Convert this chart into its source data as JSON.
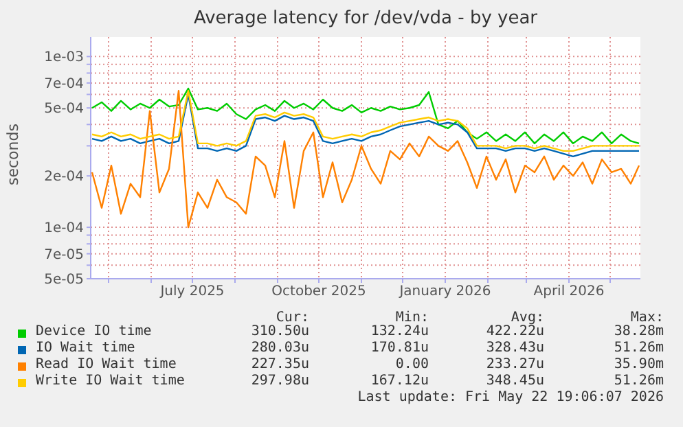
{
  "chart_data": {
    "type": "line",
    "title": "Average latency for /dev/vda - by year",
    "ylabel": "seconds",
    "log": "y",
    "grid": true,
    "legend": "bottom",
    "marker": "none",
    "line_style": "solid",
    "xlim": [
      "2025-04-18",
      "2026-05-23"
    ],
    "xticks": [
      {
        "value": "2025-05-01",
        "label": null
      },
      {
        "value": "2025-06-01",
        "label": null
      },
      {
        "value": "2025-07-01",
        "label": "July 2025"
      },
      {
        "value": "2025-08-01",
        "label": null
      },
      {
        "value": "2025-09-01",
        "label": null
      },
      {
        "value": "2025-10-01",
        "label": "October 2025"
      },
      {
        "value": "2025-11-01",
        "label": null
      },
      {
        "value": "2025-12-01",
        "label": null
      },
      {
        "value": "2026-01-01",
        "label": "January 2026"
      },
      {
        "value": "2026-02-01",
        "label": null
      },
      {
        "value": "2026-03-01",
        "label": null
      },
      {
        "value": "2026-04-01",
        "label": "April 2026"
      },
      {
        "value": "2026-05-01",
        "label": null
      }
    ],
    "ylim": [
      5e-05,
      0.0013
    ],
    "yticks": [
      {
        "value": 5e-05,
        "label": "5e-05"
      },
      {
        "value": 6e-05,
        "label": null
      },
      {
        "value": 7e-05,
        "label": "7e-05"
      },
      {
        "value": 8e-05,
        "label": null
      },
      {
        "value": 9e-05,
        "label": null
      },
      {
        "value": 0.0001,
        "label": "1e-04"
      },
      {
        "value": 0.0002,
        "label": "2e-04"
      },
      {
        "value": 0.0003,
        "label": null
      },
      {
        "value": 0.0004,
        "label": null
      },
      {
        "value": 0.0005,
        "label": "5e-04"
      },
      {
        "value": 0.0006,
        "label": null
      },
      {
        "value": 0.0007,
        "label": "7e-04"
      },
      {
        "value": 0.0008,
        "label": null
      },
      {
        "value": 0.0009,
        "label": null
      },
      {
        "value": 0.001,
        "label": "1e-03"
      }
    ],
    "x": [
      "2025-04-19",
      "2025-04-26",
      "2025-05-03",
      "2025-05-10",
      "2025-05-17",
      "2025-05-24",
      "2025-05-31",
      "2025-06-07",
      "2025-06-14",
      "2025-06-21",
      "2025-06-28",
      "2025-07-05",
      "2025-07-12",
      "2025-07-19",
      "2025-07-26",
      "2025-08-02",
      "2025-08-09",
      "2025-08-16",
      "2025-08-23",
      "2025-08-30",
      "2025-09-06",
      "2025-09-13",
      "2025-09-20",
      "2025-09-27",
      "2025-10-04",
      "2025-10-11",
      "2025-10-18",
      "2025-10-25",
      "2025-11-01",
      "2025-11-08",
      "2025-11-15",
      "2025-11-22",
      "2025-11-29",
      "2025-12-06",
      "2025-12-13",
      "2025-12-20",
      "2025-12-27",
      "2026-01-03",
      "2026-01-10",
      "2026-01-17",
      "2026-01-24",
      "2026-01-31",
      "2026-02-07",
      "2026-02-14",
      "2026-02-21",
      "2026-02-28",
      "2026-03-07",
      "2026-03-14",
      "2026-03-21",
      "2026-03-28",
      "2026-04-04",
      "2026-04-11",
      "2026-04-18",
      "2026-04-25",
      "2026-05-02",
      "2026-05-09",
      "2026-05-16",
      "2026-05-22"
    ],
    "series": [
      {
        "name": "Device IO time",
        "color": "#00cc00",
        "values": [
          0.0005,
          0.00054,
          0.00048,
          0.00055,
          0.00049,
          0.00053,
          0.0005,
          0.00056,
          0.00051,
          0.00052,
          0.00065,
          0.00049,
          0.0005,
          0.00048,
          0.00053,
          0.00046,
          0.00043,
          0.00049,
          0.00052,
          0.00048,
          0.00055,
          0.0005,
          0.00053,
          0.00049,
          0.00056,
          0.0005,
          0.00048,
          0.00052,
          0.00047,
          0.0005,
          0.00048,
          0.00051,
          0.00049,
          0.0005,
          0.00052,
          0.00062,
          0.0004,
          0.00038,
          0.00042,
          0.00036,
          0.00033,
          0.00036,
          0.00032,
          0.00035,
          0.00032,
          0.00036,
          0.00031,
          0.00035,
          0.00032,
          0.00036,
          0.00031,
          0.00034,
          0.00032,
          0.00036,
          0.00031,
          0.00035,
          0.00032,
          0.00031
        ]
      },
      {
        "name": "IO Wait time",
        "color": "#0066b3",
        "values": [
          0.00033,
          0.00032,
          0.00034,
          0.00032,
          0.00033,
          0.00031,
          0.00032,
          0.00033,
          0.00031,
          0.00032,
          0.0006,
          0.00029,
          0.00029,
          0.00028,
          0.00029,
          0.00028,
          0.0003,
          0.00043,
          0.00044,
          0.00042,
          0.00045,
          0.00043,
          0.00044,
          0.00042,
          0.00032,
          0.00031,
          0.00032,
          0.00033,
          0.00032,
          0.00034,
          0.00035,
          0.00037,
          0.00039,
          0.0004,
          0.00041,
          0.00042,
          0.0004,
          0.00041,
          0.0004,
          0.00036,
          0.00029,
          0.00029,
          0.00029,
          0.00028,
          0.00029,
          0.00029,
          0.00028,
          0.00029,
          0.00028,
          0.00027,
          0.00026,
          0.00027,
          0.00028,
          0.00028,
          0.00028,
          0.00028,
          0.00028,
          0.00028
        ]
      },
      {
        "name": "Read IO Wait time",
        "color": "#ff8000",
        "values": [
          0.00021,
          0.00013,
          0.00023,
          0.00012,
          0.00018,
          0.00015,
          0.00048,
          0.00016,
          0.00022,
          0.00063,
          0.0001,
          0.00016,
          0.00013,
          0.00019,
          0.00015,
          0.00014,
          0.00012,
          0.00026,
          0.00023,
          0.00015,
          0.00032,
          0.00013,
          0.00028,
          0.00036,
          0.00015,
          0.00024,
          0.00014,
          0.00019,
          0.0003,
          0.00022,
          0.00018,
          0.00028,
          0.00025,
          0.00031,
          0.00026,
          0.00034,
          0.0003,
          0.00028,
          0.00032,
          0.00024,
          0.00017,
          0.00026,
          0.00019,
          0.00025,
          0.00016,
          0.00023,
          0.00021,
          0.00026,
          0.00019,
          0.00023,
          0.0002,
          0.00024,
          0.00018,
          0.00025,
          0.00021,
          0.00022,
          0.00018,
          0.00023
        ]
      },
      {
        "name": "Write IO Wait time",
        "color": "#ffcc00",
        "values": [
          0.00035,
          0.00034,
          0.00036,
          0.00034,
          0.00035,
          0.00033,
          0.00034,
          0.00035,
          0.00033,
          0.00034,
          0.00063,
          0.00031,
          0.00031,
          0.0003,
          0.00031,
          0.0003,
          0.00032,
          0.00045,
          0.00046,
          0.00044,
          0.00047,
          0.00045,
          0.00046,
          0.00044,
          0.00034,
          0.00033,
          0.00034,
          0.00035,
          0.00034,
          0.00036,
          0.00037,
          0.00039,
          0.00041,
          0.00042,
          0.00043,
          0.00044,
          0.00042,
          0.00043,
          0.00042,
          0.00038,
          0.0003,
          0.0003,
          0.0003,
          0.00029,
          0.0003,
          0.0003,
          0.00029,
          0.0003,
          0.00029,
          0.00028,
          0.00028,
          0.00029,
          0.0003,
          0.0003,
          0.0003,
          0.0003,
          0.0003,
          0.0003
        ]
      }
    ],
    "annotations": [
      "Cur:",
      "Min:",
      "Avg:",
      "Max:",
      "310.50u",
      "132.24u",
      "422.22u",
      "38.28m",
      "280.03u",
      "170.81u",
      "328.43u",
      "51.26m",
      "227.35u",
      "0.00",
      "233.27u",
      "35.90m",
      "297.98u",
      "167.12u",
      "348.45u",
      "51.26m",
      "Last update: Fri May 22 19:06:07 2026"
    ]
  }
}
